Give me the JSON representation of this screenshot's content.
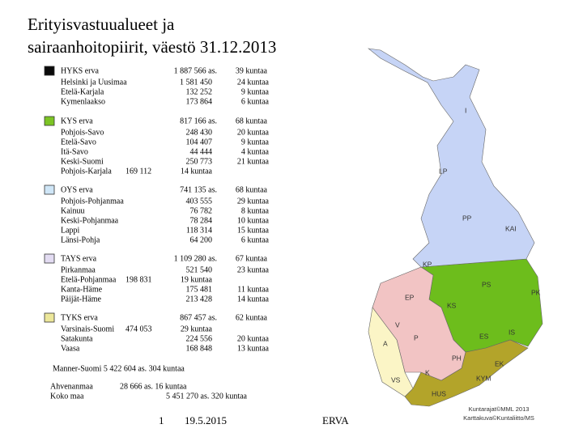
{
  "header": {
    "title_line1": "Erityisvastuualueet ja",
    "title_line2": "sairaanhoitopiirit, väestö 31.12.2013"
  },
  "groups": [
    {
      "name": "HYKS erva",
      "population": "1 887 566 as.",
      "municipalities": "39 kuntaa",
      "color": "#0a0a0a",
      "map_color": "#b3a42a",
      "areas": [
        "Helsinki ja Uusimaa",
        "Etelä-Karjala",
        "Kymenlaakso"
      ],
      "notes": [
        null,
        null,
        null
      ],
      "populations": [
        "1 581 450",
        "132 252",
        "173 864"
      ],
      "municipality_counts": [
        "24 kuntaa",
        "9 kuntaa",
        "6 kuntaa"
      ]
    },
    {
      "name": "KYS erva",
      "population": "817 166 as.",
      "municipalities": "68 kuntaa",
      "color": "#7cc424",
      "map_color": "#6dbd1c",
      "areas": [
        "Pohjois-Savo",
        "Etelä-Savo",
        "Itä-Savo",
        "Keski-Suomi",
        "Pohjois-Karjala"
      ],
      "notes": [
        null,
        null,
        null,
        null,
        "169 112"
      ],
      "populations": [
        "248 430",
        "104 407",
        "44 444",
        "250 773",
        "14 kuntaa"
      ],
      "municipality_counts": [
        "20 kuntaa",
        "9 kuntaa",
        "4 kuntaa",
        "21 kuntaa",
        null
      ]
    },
    {
      "name": "OYS erva",
      "population": "741 135 as.",
      "municipalities": "68 kuntaa",
      "color": "#cfe6f7",
      "map_color": "#c6d4f6",
      "areas": [
        "Pohjois-Pohjanmaa",
        "Kainuu",
        "Keski-Pohjanmaa",
        "Lappi",
        "Länsi-Pohja"
      ],
      "notes": [
        null,
        null,
        null,
        null,
        null
      ],
      "populations": [
        "403 555",
        "76 782",
        "78 284",
        "118 314",
        "64 200"
      ],
      "municipality_counts": [
        "29 kuntaa",
        "8 kuntaa",
        "10 kuntaa",
        "15 kuntaa",
        "6 kuntaa"
      ]
    },
    {
      "name": "TAYS erva",
      "population": "1 109 280 as.",
      "municipalities": "67 kuntaa",
      "color": "#e3dcf2",
      "map_color": "#f2c4c4",
      "areas": [
        "Pirkanmaa",
        "Etelä-Pohjanmaa",
        "Kanta-Häme",
        "Päijät-Häme"
      ],
      "notes": [
        null,
        "198 831",
        null,
        null
      ],
      "populations": [
        "521 540",
        "19 kuntaa",
        "175 481",
        "213 428"
      ],
      "municipality_counts": [
        "23 kuntaa",
        null,
        "11 kuntaa",
        "14 kuntaa"
      ]
    },
    {
      "name": "TYKS erva",
      "population": "867 457 as.",
      "municipalities": "62 kuntaa",
      "color": "#ece79a",
      "map_color": "#fbf5c6",
      "areas": [
        "Varsinais-Suomi",
        "Satakunta",
        "Vaasa"
      ],
      "notes": [
        "474 053",
        null,
        null
      ],
      "populations": [
        "29 kuntaa",
        "224 556",
        "168 848"
      ],
      "municipality_counts": [
        null,
        "20 kuntaa",
        "13 kuntaa"
      ]
    }
  ],
  "totals": {
    "mainland": "Manner-Suomi 5 422 604 as. 304 kuntaa",
    "aland": "Ahvenanmaa",
    "whole": "Koko maa",
    "aland_value": "28 666 as. 16 kuntaa",
    "whole_value": "5 451 270 as. 320 kuntaa"
  },
  "footer": {
    "page": "1",
    "date": "19.5.2015",
    "label": "ERVA"
  },
  "map": {
    "labels": [
      "I",
      "LP",
      "PP",
      "KAI",
      "KP",
      "PS",
      "PK",
      "EP",
      "KS",
      "ES",
      "IS",
      "V",
      "P",
      "PH",
      "K",
      "VS",
      "KYM",
      "EK",
      "HUS",
      "A"
    ],
    "credits": [
      "Kuntarajat©MML 2013",
      "Karttakuva©Kuntaliitto/MS"
    ]
  }
}
